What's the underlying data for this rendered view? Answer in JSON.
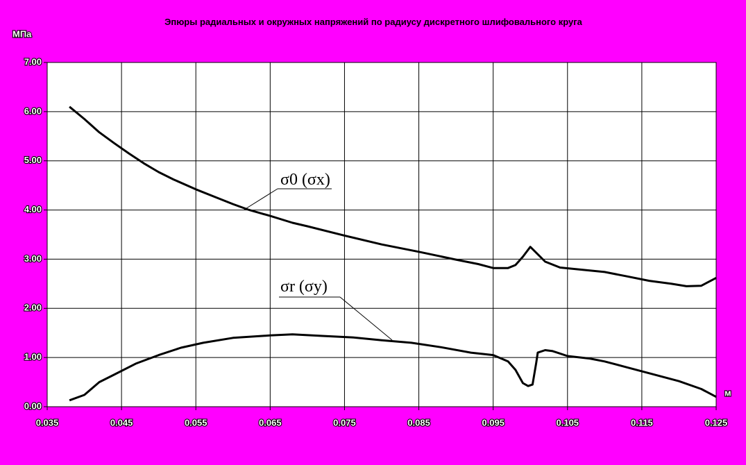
{
  "chart_data": {
    "type": "line",
    "title": "Эпюры радиальных и окружных напряжений по радиусу дискретного шлифовального круга",
    "y_label": "МПа",
    "x_label": "м",
    "xlim": [
      0.035,
      0.125
    ],
    "xticks": [
      0.035,
      0.045,
      0.055,
      0.065,
      0.075,
      0.085,
      0.095,
      0.105,
      0.115,
      0.125
    ],
    "ylim": [
      0,
      7
    ],
    "yticks": [
      {
        "value": 0,
        "label": "0.00"
      },
      {
        "value": 1,
        "label": "1.00"
      },
      {
        "value": 2,
        "label": "2.00"
      },
      {
        "value": 3,
        "label": "3.00"
      },
      {
        "value": 4,
        "label": "4.00"
      },
      {
        "value": 5,
        "label": "5.00"
      },
      {
        "value": 6,
        "label": "6.00"
      },
      {
        "value": 7,
        "label": "7.00"
      }
    ],
    "grid": true,
    "series": [
      {
        "name": "σ0 (σx)",
        "color": "#000000",
        "x": [
          0.038,
          0.04,
          0.042,
          0.044,
          0.046,
          0.048,
          0.05,
          0.052,
          0.055,
          0.058,
          0.06,
          0.062,
          0.065,
          0.068,
          0.07,
          0.075,
          0.08,
          0.085,
          0.09,
          0.093,
          0.095,
          0.097,
          0.098,
          0.099,
          0.1,
          0.101,
          0.102,
          0.104,
          0.106,
          0.11,
          0.113,
          0.116,
          0.119,
          0.121,
          0.123,
          0.125
        ],
        "values": [
          6.1,
          5.85,
          5.58,
          5.36,
          5.15,
          4.95,
          4.77,
          4.62,
          4.42,
          4.24,
          4.12,
          4.01,
          3.88,
          3.74,
          3.67,
          3.48,
          3.3,
          3.15,
          2.99,
          2.9,
          2.82,
          2.82,
          2.88,
          3.05,
          3.25,
          3.1,
          2.95,
          2.83,
          2.8,
          2.74,
          2.65,
          2.56,
          2.5,
          2.45,
          2.46,
          2.62
        ]
      },
      {
        "name": "σr (σy)",
        "color": "#000000",
        "x": [
          0.038,
          0.04,
          0.042,
          0.044,
          0.047,
          0.05,
          0.053,
          0.056,
          0.06,
          0.065,
          0.068,
          0.072,
          0.076,
          0.08,
          0.084,
          0.088,
          0.092,
          0.095,
          0.097,
          0.098,
          0.099,
          0.0997,
          0.1003,
          0.1008,
          0.101,
          0.102,
          0.103,
          0.105,
          0.108,
          0.11,
          0.113,
          0.116,
          0.12,
          0.123,
          0.125
        ],
        "values": [
          0.13,
          0.24,
          0.5,
          0.65,
          0.88,
          1.05,
          1.2,
          1.3,
          1.4,
          1.45,
          1.47,
          1.44,
          1.41,
          1.35,
          1.3,
          1.21,
          1.1,
          1.05,
          0.92,
          0.75,
          0.48,
          0.42,
          0.45,
          0.9,
          1.1,
          1.15,
          1.13,
          1.03,
          0.98,
          0.92,
          0.8,
          0.68,
          0.52,
          0.36,
          0.2
        ]
      }
    ]
  }
}
